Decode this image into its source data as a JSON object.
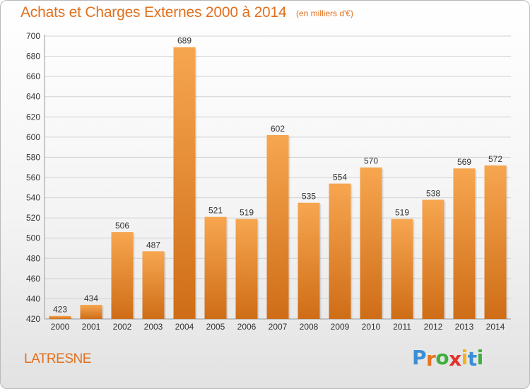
{
  "title": "Achats et Charges Externes 2000 à 2014",
  "subtitle": "(en milliers d'€)",
  "commune": "LATRESNE",
  "logo": {
    "letters": [
      "P",
      "r",
      "o",
      "x",
      "i",
      "t",
      "i"
    ],
    "colors": [
      "#3a8fd6",
      "#e8731e",
      "#3fae3f",
      "#e2332b",
      "#f1b21c",
      "#3a8fd6",
      "#3fae3f"
    ]
  },
  "colors": {
    "accent": "#e1701f",
    "bar_light": "#f7a650",
    "bar_dark": "#cf6d17",
    "grid": "#d2d2d2"
  },
  "chart_data": {
    "type": "bar",
    "categories": [
      "2000",
      "2001",
      "2002",
      "2003",
      "2004",
      "2005",
      "2006",
      "2007",
      "2008",
      "2009",
      "2010",
      "2011",
      "2012",
      "2013",
      "2014"
    ],
    "values": [
      423,
      434,
      506,
      487,
      689,
      521,
      519,
      602,
      535,
      554,
      570,
      519,
      538,
      569,
      572
    ],
    "y_ticks": [
      420,
      440,
      460,
      480,
      500,
      520,
      540,
      560,
      580,
      600,
      620,
      640,
      660,
      680,
      700
    ],
    "ylim": [
      420,
      700
    ],
    "grid": true,
    "legend": "none"
  }
}
